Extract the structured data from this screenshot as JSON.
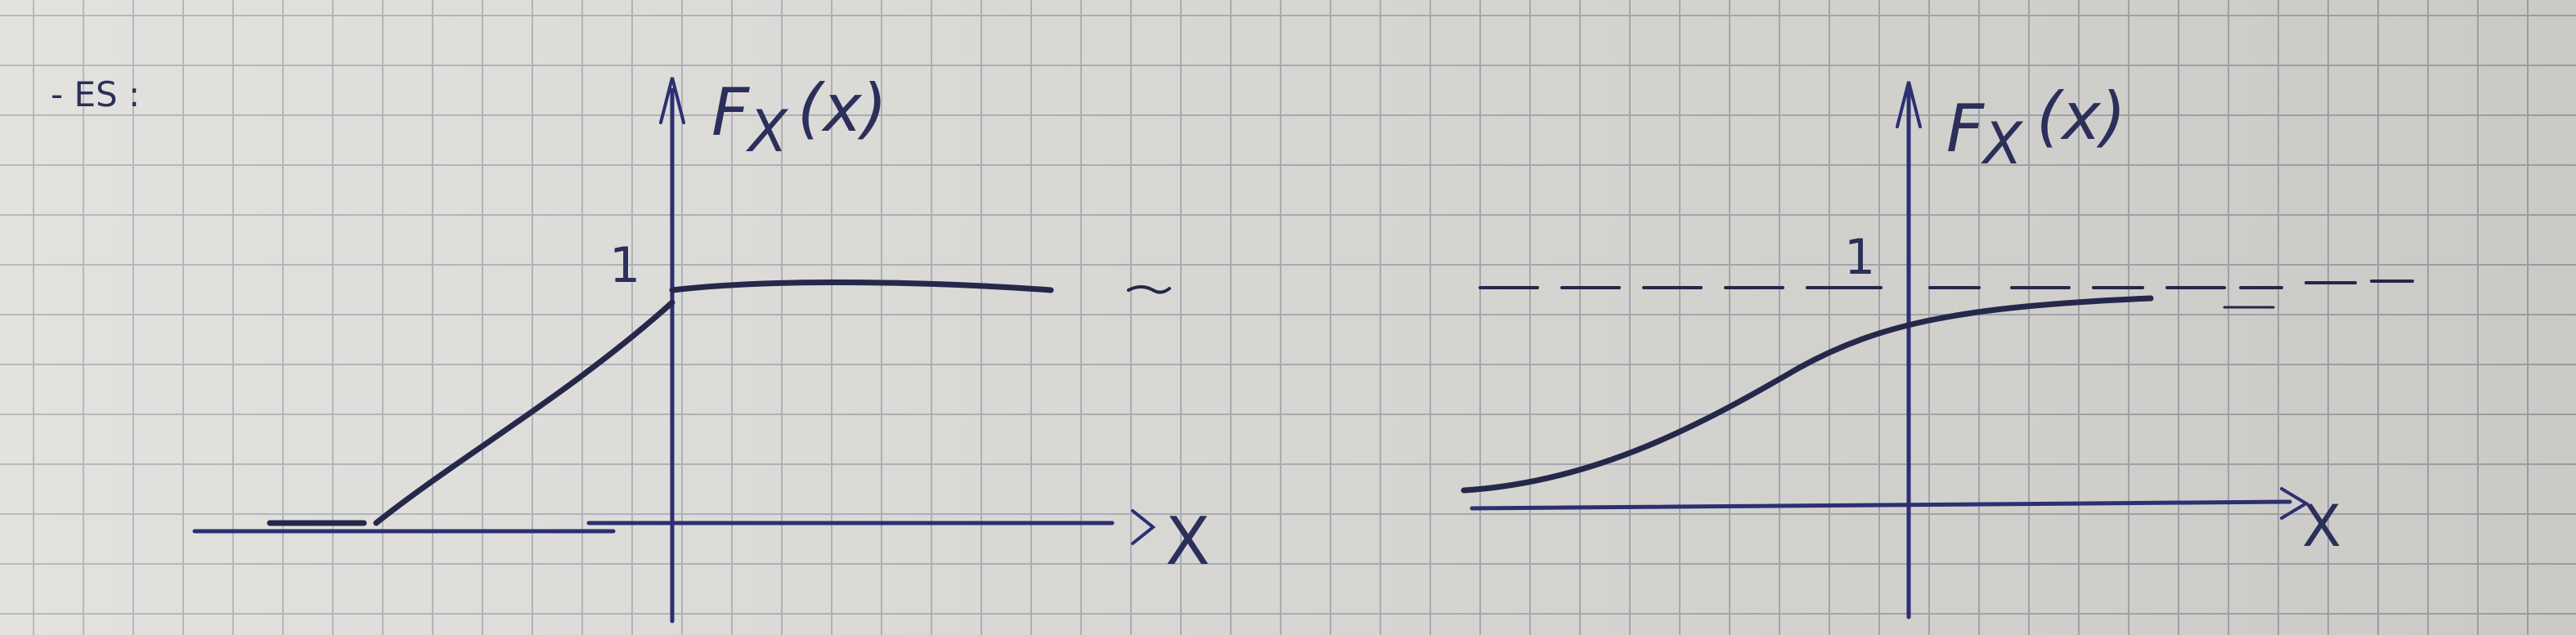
{
  "note": "- ES :",
  "plots": [
    {
      "y_label": {
        "function": "F",
        "subscript": "X",
        "argument": "(x)"
      },
      "y_tick": "1",
      "x_label": "X"
    },
    {
      "y_label": {
        "function": "F",
        "subscript": "X",
        "argument": "(x)"
      },
      "y_tick": "1",
      "x_label": "X"
    }
  ]
}
